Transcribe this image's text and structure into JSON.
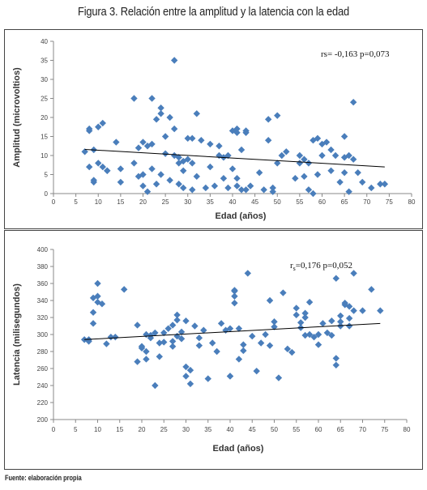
{
  "figure_title": "Figura 3. Relación entre la amplitud y la latencia con la edad",
  "source": "Fuente: elaboración propia",
  "colors": {
    "marker": "#4a7ebb",
    "trend": "#000000",
    "axis": "#888888"
  },
  "chart_data": [
    {
      "type": "scatter",
      "title": "",
      "xlabel": "Edad  (años)",
      "ylabel": "Amplitud (microvoltios)",
      "xlim": [
        0,
        80
      ],
      "ylim": [
        0,
        40
      ],
      "xticks": [
        "0",
        "5",
        "10",
        "15",
        "20",
        "25",
        "30",
        "35",
        "40",
        "45",
        "50",
        "55",
        "60",
        "65",
        "70",
        "75",
        "80"
      ],
      "yticks": [
        "0",
        "5",
        "10",
        "15",
        "20",
        "25",
        "30",
        "35",
        "40"
      ],
      "annotation": "rs= -0,163 p=0,073",
      "trendline": {
        "x": [
          7,
          74
        ],
        "y": [
          11.6,
          7.0
        ]
      },
      "grid": false,
      "series": [
        {
          "x": [
            7,
            8,
            8,
            8,
            9,
            9,
            9,
            10,
            10,
            11,
            11,
            12,
            12,
            14,
            15,
            15,
            18,
            18,
            19,
            19,
            20,
            20,
            20,
            21,
            21,
            22,
            22,
            22,
            23,
            23,
            24,
            24,
            24,
            25,
            25,
            26,
            26,
            27,
            27,
            27,
            28,
            28,
            28,
            29,
            29,
            29,
            30,
            30,
            31,
            31,
            31,
            32,
            32,
            33,
            34,
            35,
            35,
            36,
            37,
            37,
            38,
            38,
            39,
            39,
            40,
            40,
            41,
            41,
            41,
            41,
            42,
            42,
            43,
            43,
            43,
            44,
            46,
            47,
            48,
            48,
            49,
            49,
            50,
            50,
            51,
            52,
            54,
            55,
            55,
            56,
            56,
            57,
            57,
            58,
            58,
            59,
            59,
            60,
            60,
            61,
            62,
            62,
            63,
            64,
            65,
            65,
            65,
            66,
            66,
            67,
            67,
            68,
            69,
            71,
            73,
            74
          ],
          "y": [
            11,
            7,
            16.5,
            17,
            3.5,
            3,
            11.5,
            17.5,
            8,
            18.5,
            7,
            6,
            6,
            13.5,
            6.5,
            3,
            8,
            25,
            12,
            4.5,
            5,
            2,
            13.5,
            12.5,
            0.5,
            25,
            6.5,
            13,
            19.5,
            2.5,
            22.5,
            21,
            5,
            15,
            10.5,
            3.5,
            20,
            17,
            10,
            35,
            9.5,
            2.5,
            8,
            1.5,
            6,
            8.5,
            14.5,
            9,
            1,
            14.5,
            8,
            21,
            4.5,
            14,
            1.5,
            13,
            7,
            2,
            12.5,
            10,
            4,
            9.5,
            10,
            1.5,
            6.5,
            16.5,
            4,
            16,
            17,
            2,
            11.5,
            1,
            16,
            16.5,
            1,
            2,
            5.5,
            1,
            19.5,
            14,
            0.5,
            1.5,
            20.5,
            8,
            10,
            11,
            4,
            8,
            10,
            4.5,
            9,
            1,
            8,
            14,
            0,
            5,
            14.5,
            10,
            13,
            13.5,
            6,
            11.5,
            10,
            3,
            5.5,
            9.5,
            15,
            10,
            0.5,
            9,
            24,
            5.5,
            3,
            1.5,
            2.5,
            2.5
          ]
        }
      ]
    },
    {
      "type": "scatter",
      "title": "",
      "xlabel": "Edad  (años)",
      "ylabel": "Latencia (milisegundos)",
      "xlim": [
        0,
        80
      ],
      "ylim": [
        200,
        400
      ],
      "xticks": [
        "0",
        "5",
        "10",
        "15",
        "20",
        "25",
        "30",
        "35",
        "40",
        "45",
        "50",
        "55",
        "60",
        "65",
        "70",
        "75",
        "80"
      ],
      "yticks": [
        "200",
        "220",
        "240",
        "260",
        "280",
        "300",
        "320",
        "340",
        "360",
        "380",
        "400"
      ],
      "annotation_main": "r",
      "annotation_sub": "s",
      "annotation_rest": "=0,176 p=0,052",
      "trendline": {
        "x": [
          7,
          74
        ],
        "y": [
          294,
          313
        ]
      },
      "grid": false,
      "series": [
        {
          "x": [
            7,
            8,
            8,
            9,
            9,
            9,
            10,
            10,
            10,
            11,
            12,
            13,
            14,
            16,
            19,
            19,
            20,
            20,
            21,
            21,
            21,
            22,
            22,
            23,
            23,
            24,
            24,
            25,
            25,
            26,
            27,
            27,
            27,
            28,
            28,
            28,
            29,
            29,
            30,
            30,
            30,
            31,
            31,
            32,
            33,
            33,
            34,
            35,
            36,
            37,
            38,
            39,
            40,
            40,
            40,
            41,
            41,
            41,
            41,
            42,
            42,
            43,
            43,
            44,
            45,
            46,
            47,
            48,
            49,
            49,
            50,
            50,
            51,
            52,
            53,
            54,
            55,
            55,
            56,
            56,
            57,
            57,
            57,
            58,
            58,
            59,
            60,
            60,
            61,
            62,
            63,
            63,
            64,
            64,
            64,
            65,
            65,
            65,
            66,
            66,
            67,
            67,
            67,
            68,
            68,
            70,
            72,
            74
          ],
          "y": [
            294,
            294,
            292,
            326,
            343,
            313,
            345,
            338,
            360,
            336,
            289,
            297,
            297,
            353,
            311,
            268,
            284,
            286,
            271,
            280,
            300,
            296,
            299,
            302,
            240,
            274,
            290,
            291,
            302,
            307,
            311,
            286,
            292,
            317,
            298,
            323,
            303,
            295,
            316,
            262,
            251,
            242,
            258,
            310,
            287,
            296,
            305,
            248,
            290,
            280,
            313,
            305,
            251,
            251,
            307,
            345,
            337,
            351,
            352,
            271,
            307,
            288,
            281,
            372,
            298,
            257,
            290,
            300,
            340,
            287,
            309,
            315,
            249,
            349,
            283,
            279,
            323,
            331,
            308,
            314,
            320,
            325,
            299,
            300,
            338,
            297,
            288,
            300,
            313,
            302,
            299,
            316,
            272,
            264,
            366,
            322,
            315,
            310,
            335,
            337,
            319,
            333,
            310,
            328,
            372,
            328,
            353,
            328
          ]
        }
      ]
    }
  ]
}
